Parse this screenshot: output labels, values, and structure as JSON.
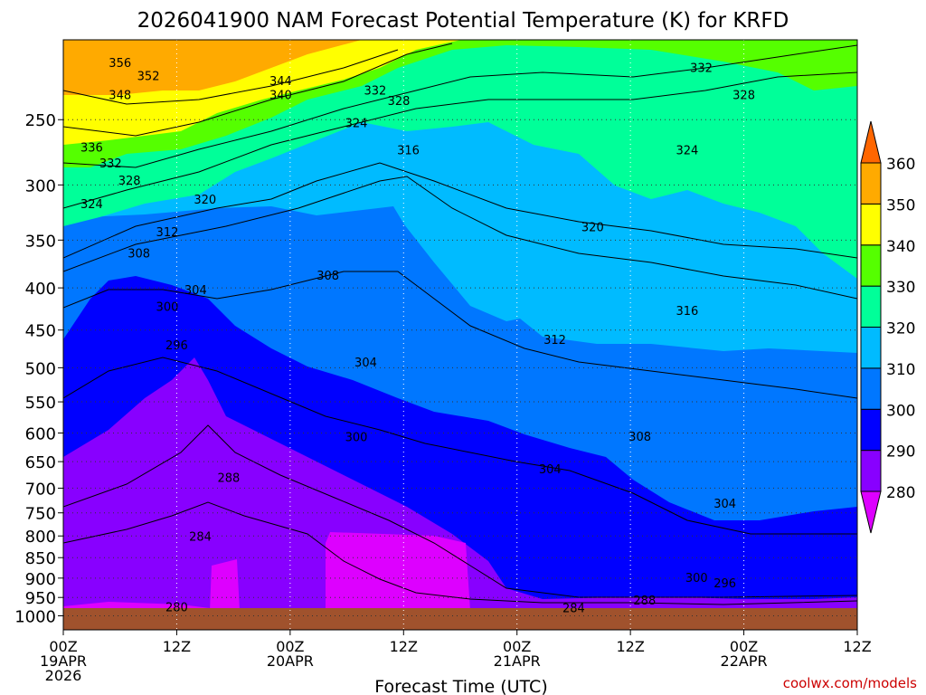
{
  "chart_data": {
    "type": "heatmap",
    "title": "2026041900 NAM Forecast Potential Temperature (K) for KRFD",
    "xlabel": "Forecast Time (UTC)",
    "credit": "coolwx.com/models",
    "x_ticks": [
      {
        "hour": 0,
        "lines": [
          "00Z",
          "19APR",
          "2026"
        ]
      },
      {
        "hour": 12,
        "lines": [
          "12Z"
        ]
      },
      {
        "hour": 24,
        "lines": [
          "00Z",
          "20APR"
        ]
      },
      {
        "hour": 36,
        "lines": [
          "12Z"
        ]
      },
      {
        "hour": 48,
        "lines": [
          "00Z",
          "21APR"
        ]
      },
      {
        "hour": 60,
        "lines": [
          "12Z"
        ]
      },
      {
        "hour": 72,
        "lines": [
          "00Z",
          "22APR"
        ]
      },
      {
        "hour": 84,
        "lines": [
          "12Z"
        ]
      }
    ],
    "x_range_hours": [
      0,
      84
    ],
    "y_axis": "pressure (hPa, log scale)",
    "y_range_hpa": [
      1040,
      200
    ],
    "y_ticks": [
      250,
      300,
      350,
      400,
      450,
      500,
      550,
      600,
      650,
      700,
      750,
      800,
      850,
      900,
      950,
      1000
    ],
    "ground_level_hpa": 990,
    "colorbar": {
      "levels": [
        280,
        290,
        300,
        310,
        320,
        330,
        340,
        350,
        360
      ],
      "colors": [
        "#dd00ff",
        "#8800ff",
        "#0000ff",
        "#0077ff",
        "#00bbff",
        "#00ff99",
        "#55ff00",
        "#ffff00",
        "#ffaa00",
        "#ff8800",
        "#ff6600"
      ],
      "extend": "both"
    },
    "contour_interval_K": 2,
    "contour_labels": [
      {
        "v": "356",
        "h": 6.0,
        "p": 213
      },
      {
        "v": "352",
        "h": 9.0,
        "p": 221
      },
      {
        "v": "348",
        "h": 6.0,
        "p": 233
      },
      {
        "v": "344",
        "h": 23.0,
        "p": 224
      },
      {
        "v": "340",
        "h": 23.0,
        "p": 233
      },
      {
        "v": "332",
        "h": 33.0,
        "p": 230
      },
      {
        "v": "328",
        "h": 35.5,
        "p": 237
      },
      {
        "v": "324",
        "h": 31.0,
        "p": 252
      },
      {
        "v": "316",
        "h": 36.5,
        "p": 272
      },
      {
        "v": "332",
        "h": 67.5,
        "p": 216
      },
      {
        "v": "328",
        "h": 72.0,
        "p": 233
      },
      {
        "v": "324",
        "h": 66.0,
        "p": 272
      },
      {
        "v": "336",
        "h": 3.0,
        "p": 270
      },
      {
        "v": "332",
        "h": 5.0,
        "p": 282
      },
      {
        "v": "328",
        "h": 7.0,
        "p": 296
      },
      {
        "v": "324",
        "h": 3.0,
        "p": 316
      },
      {
        "v": "320",
        "h": 15.0,
        "p": 312
      },
      {
        "v": "320",
        "h": 56.0,
        "p": 337
      },
      {
        "v": "312",
        "h": 11.0,
        "p": 342
      },
      {
        "v": "308",
        "h": 8.0,
        "p": 363
      },
      {
        "v": "308",
        "h": 28.0,
        "p": 386
      },
      {
        "v": "304",
        "h": 14.0,
        "p": 402
      },
      {
        "v": "300",
        "h": 11.0,
        "p": 421
      },
      {
        "v": "316",
        "h": 66.0,
        "p": 426
      },
      {
        "v": "312",
        "h": 52.0,
        "p": 462
      },
      {
        "v": "296",
        "h": 12.0,
        "p": 469
      },
      {
        "v": "304",
        "h": 32.0,
        "p": 492
      },
      {
        "v": "308",
        "h": 61.0,
        "p": 605
      },
      {
        "v": "300",
        "h": 31.0,
        "p": 606
      },
      {
        "v": "304",
        "h": 51.5,
        "p": 663
      },
      {
        "v": "288",
        "h": 17.5,
        "p": 679
      },
      {
        "v": "304",
        "h": 70.0,
        "p": 730
      },
      {
        "v": "284",
        "h": 14.5,
        "p": 801
      },
      {
        "v": "300",
        "h": 67.0,
        "p": 898
      },
      {
        "v": "296",
        "h": 70.0,
        "p": 912
      },
      {
        "v": "288",
        "h": 61.5,
        "p": 957
      },
      {
        "v": "280",
        "h": 12.0,
        "p": 975
      },
      {
        "v": "284",
        "h": 54.0,
        "p": 977
      }
    ]
  }
}
